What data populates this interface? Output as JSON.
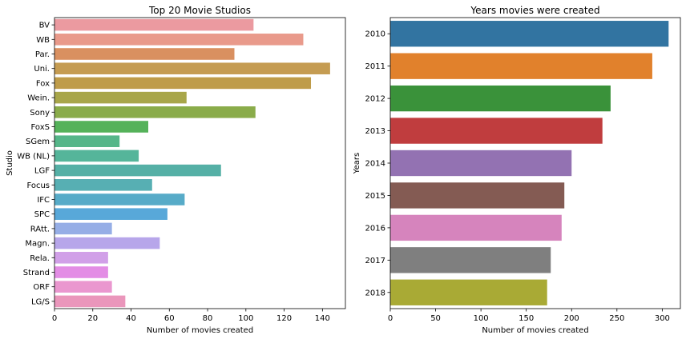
{
  "chart_data": [
    {
      "type": "bar",
      "orientation": "horizontal",
      "title": "Top 20 Movie Studios",
      "xlabel": "Number of movies created",
      "ylabel": "Studio",
      "xlim": [
        0,
        152
      ],
      "xticks": [
        0,
        20,
        40,
        60,
        80,
        100,
        120,
        140
      ],
      "grid": false,
      "categories": [
        "BV",
        "WB",
        "Par.",
        "Uni.",
        "Fox",
        "Wein.",
        "Sony",
        "FoxS",
        "SGem",
        "WB (NL)",
        "LGF",
        "Focus",
        "IFC",
        "SPC",
        "RAtt.",
        "Magn.",
        "Rela.",
        "Strand",
        "ORF",
        "LG/S"
      ],
      "values": [
        104,
        130,
        94,
        144,
        134,
        69,
        105,
        49,
        34,
        44,
        87,
        51,
        68,
        59,
        30,
        55,
        28,
        28,
        30,
        37
      ],
      "colors": [
        "#eb9aa0",
        "#e99a8b",
        "#d99060",
        "#c59c52",
        "#bf9c49",
        "#a8a64a",
        "#8aac4a",
        "#55b25a",
        "#55b689",
        "#55b59a",
        "#55b0a6",
        "#57afb3",
        "#57abc8",
        "#58a8d9",
        "#96aee6",
        "#b7a6ea",
        "#d1a0e8",
        "#e38de5",
        "#ea97cf",
        "#ea96bb"
      ]
    },
    {
      "type": "bar",
      "orientation": "horizontal",
      "title": "Years movies were created",
      "xlabel": "Number of movies created",
      "ylabel": "Years",
      "xlim": [
        0,
        320
      ],
      "xticks": [
        0,
        50,
        100,
        150,
        200,
        250,
        300
      ],
      "grid": false,
      "categories": [
        "2010",
        "2011",
        "2012",
        "2013",
        "2014",
        "2015",
        "2016",
        "2017",
        "2018"
      ],
      "values": [
        307,
        289,
        243,
        234,
        200,
        192,
        189,
        177,
        173
      ],
      "colors": [
        "#3274a1",
        "#e1812c",
        "#3a923a",
        "#c03d3e",
        "#9372b2",
        "#845b53",
        "#d684bd",
        "#7f7f7f",
        "#a9aa35"
      ]
    }
  ]
}
